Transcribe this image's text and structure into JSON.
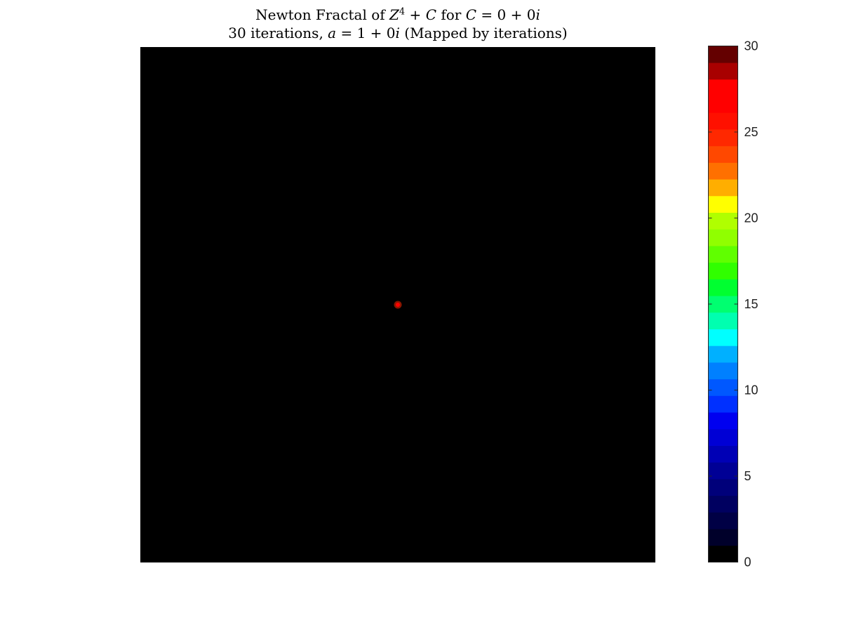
{
  "title": {
    "line1_prefix": "Newton Fractal of ",
    "line1_var1": "Z",
    "line1_exp": "4",
    "line1_plus": " + ",
    "line1_var2": "C",
    "line1_for": " for ",
    "line1_var3": "C",
    "line1_eq": " = 0 + 0",
    "line1_i": "i",
    "line2_prefix": "30 iterations, ",
    "line2_var": "a",
    "line2_eq": " = 1 + 0",
    "line2_i": "i",
    "line2_suffix": " (Mapped by iterations)"
  },
  "chart_data": {
    "type": "heatmap",
    "background_value": 0,
    "center_point": {
      "re": 0,
      "im": 0,
      "value": 27
    },
    "colorbar": {
      "min": 0,
      "max": 30,
      "levels": 30,
      "ticks": [
        0,
        5,
        10,
        15,
        20,
        25,
        30
      ],
      "colors": [
        "#000000",
        "#00002a",
        "#000045",
        "#000060",
        "#00007a",
        "#000095",
        "#0000b5",
        "#0000d5",
        "#0000f0",
        "#0030ff",
        "#0058ff",
        "#0080ff",
        "#00b0ff",
        "#00ffff",
        "#00ffb0",
        "#00ff70",
        "#00ff30",
        "#30ff00",
        "#60ff00",
        "#90ff00",
        "#b0ff00",
        "#ffff00",
        "#ffae00",
        "#ff7000",
        "#ff4800",
        "#ff2800",
        "#ff1000",
        "#ff0000",
        "#ff0000",
        "#a80000",
        "#640000"
      ]
    }
  }
}
